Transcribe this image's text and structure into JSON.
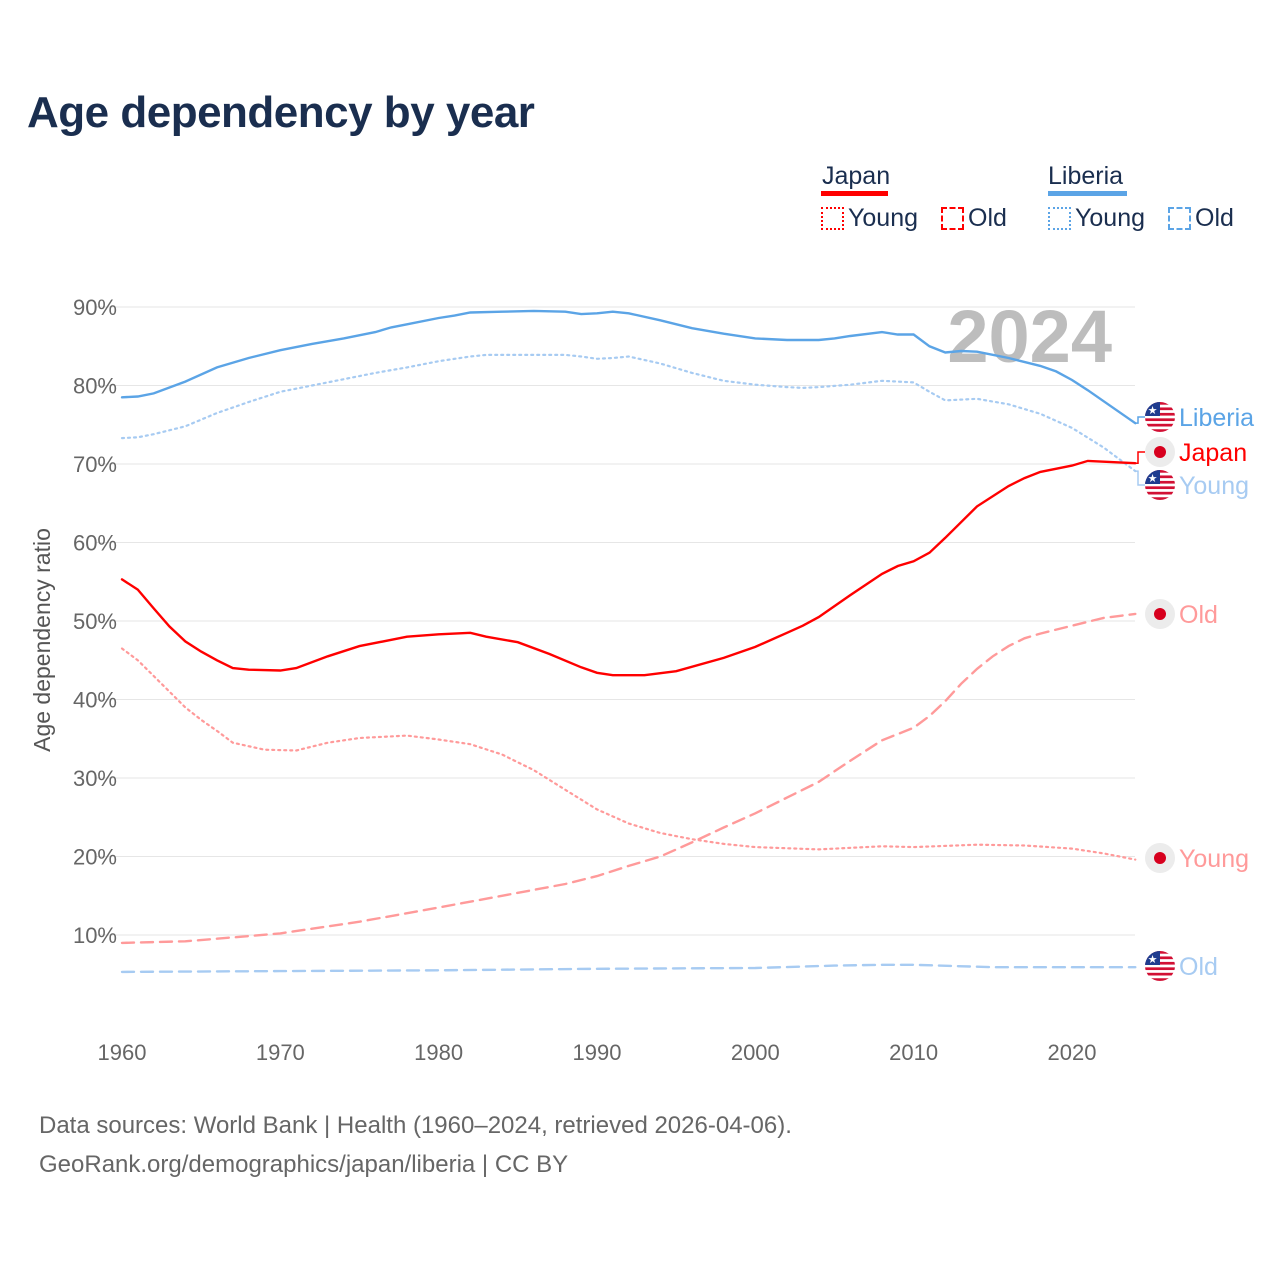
{
  "title": "Age dependency by year",
  "legend": {
    "groups": [
      {
        "country": "Japan",
        "color": "#ff0000",
        "items": [
          {
            "label": "Young",
            "style": "dotted"
          },
          {
            "label": "Old",
            "style": "dashed"
          }
        ]
      },
      {
        "country": "Liberia",
        "color": "#5ba4e6",
        "items": [
          {
            "label": "Young",
            "style": "dotted"
          },
          {
            "label": "Old",
            "style": "dashed"
          }
        ]
      }
    ]
  },
  "year_watermark": "2024",
  "source": {
    "line1": "Data sources: World Bank | Health (1960–2024, retrieved 2026-04-06).",
    "line2": "GeoRank.org/demographics/japan/liberia | CC BY"
  },
  "chart_data": {
    "type": "line",
    "title": "Age dependency by year",
    "xlabel": "",
    "ylabel": "Age dependency ratio",
    "xlim": [
      1960,
      2024
    ],
    "ylim": [
      0,
      90
    ],
    "x_ticks": [
      "1960",
      "1970",
      "1980",
      "1990",
      "2000",
      "2010",
      "2020"
    ],
    "y_ticks": [
      "10%",
      "20%",
      "30%",
      "40%",
      "50%",
      "60%",
      "70%",
      "80%",
      "90%"
    ],
    "grid": true,
    "series": [
      {
        "name": "Liberia",
        "country": "Liberia",
        "kind": "total",
        "end_label": "Liberia",
        "color": "#5ba4e6",
        "dash": "solid",
        "flag": "liberia",
        "x": [
          1960,
          1961,
          1962,
          1964,
          1966,
          1968,
          1970,
          1972,
          1974,
          1976,
          1977,
          1978,
          1980,
          1981,
          1982,
          1984,
          1986,
          1988,
          1989,
          1990,
          1991,
          1992,
          1994,
          1996,
          1998,
          2000,
          2002,
          2004,
          2005,
          2006,
          2008,
          2009,
          2010,
          2011,
          2012,
          2013,
          2014,
          2016,
          2018,
          2019,
          2020,
          2021,
          2022,
          2024
        ],
        "y": [
          78.5,
          78.6,
          79,
          80.5,
          82.3,
          83.5,
          84.5,
          85.3,
          86,
          86.8,
          87.4,
          87.8,
          88.6,
          88.9,
          89.3,
          89.4,
          89.5,
          89.4,
          89.1,
          89.2,
          89.4,
          89.2,
          88.3,
          87.3,
          86.6,
          86,
          85.8,
          85.8,
          86,
          86.3,
          86.8,
          86.5,
          86.5,
          85,
          84.2,
          84.4,
          84.3,
          83.5,
          82.5,
          81.8,
          80.7,
          79.4,
          78,
          75.2
        ]
      },
      {
        "name": "Liberia Young",
        "country": "Liberia",
        "kind": "young",
        "end_label": "Young",
        "color": "#a7cbf2",
        "dash": "dotted",
        "flag": "liberia",
        "x": [
          1960,
          1961,
          1962,
          1964,
          1966,
          1968,
          1970,
          1972,
          1974,
          1976,
          1978,
          1980,
          1982,
          1983,
          1984,
          1986,
          1988,
          1989,
          1990,
          1991,
          1992,
          1994,
          1996,
          1998,
          2000,
          2002,
          2003,
          2004,
          2006,
          2008,
          2010,
          2011,
          2012,
          2014,
          2016,
          2018,
          2020,
          2022,
          2024
        ],
        "y": [
          73.3,
          73.4,
          73.8,
          74.8,
          76.5,
          77.9,
          79.2,
          80,
          80.8,
          81.6,
          82.3,
          83.1,
          83.7,
          83.9,
          83.9,
          83.9,
          83.9,
          83.7,
          83.4,
          83.5,
          83.7,
          82.8,
          81.6,
          80.6,
          80.1,
          79.8,
          79.7,
          79.8,
          80.1,
          80.6,
          80.4,
          79.2,
          78.1,
          78.3,
          77.6,
          76.4,
          74.6,
          72.1,
          69.1
        ]
      },
      {
        "name": "Liberia Old",
        "country": "Liberia",
        "kind": "old",
        "end_label": "Old",
        "color": "#a7cbf2",
        "dash": "dashed",
        "flag": "liberia",
        "x": [
          1960,
          1970,
          1980,
          1990,
          2000,
          2005,
          2008,
          2010,
          2015,
          2020,
          2024
        ],
        "y": [
          5.3,
          5.4,
          5.5,
          5.7,
          5.8,
          6.1,
          6.2,
          6.2,
          5.9,
          5.9,
          5.9
        ]
      },
      {
        "name": "Japan",
        "country": "Japan",
        "kind": "total",
        "end_label": "Japan",
        "color": "#ff0000",
        "dash": "solid",
        "flag": "japan",
        "x": [
          1960,
          1961,
          1962,
          1963,
          1964,
          1965,
          1966,
          1967,
          1968,
          1970,
          1971,
          1973,
          1975,
          1978,
          1980,
          1982,
          1983,
          1985,
          1987,
          1989,
          1990,
          1991,
          1993,
          1995,
          1998,
          2000,
          2002,
          2003,
          2004,
          2006,
          2008,
          2009,
          2010,
          2011,
          2012,
          2014,
          2016,
          2017,
          2018,
          2020,
          2021,
          2024
        ],
        "y": [
          55.3,
          54,
          51.6,
          49.3,
          47.4,
          46.1,
          45,
          44,
          43.8,
          43.7,
          44,
          45.5,
          46.8,
          48,
          48.3,
          48.5,
          48,
          47.3,
          45.8,
          44.1,
          43.4,
          43.1,
          43.1,
          43.6,
          45.3,
          46.7,
          48.5,
          49.4,
          50.5,
          53.3,
          56,
          57,
          57.6,
          58.7,
          60.6,
          64.6,
          67.2,
          68.2,
          69,
          69.8,
          70.4,
          70.1
        ]
      },
      {
        "name": "Japan Young",
        "country": "Japan",
        "kind": "young",
        "end_label": "Young",
        "color": "#ff9a9a",
        "dash": "dotted",
        "flag": "japan",
        "x": [
          1960,
          1961,
          1962,
          1963,
          1964,
          1965,
          1966,
          1967,
          1969,
          1971,
          1973,
          1975,
          1978,
          1980,
          1982,
          1984,
          1986,
          1988,
          1990,
          1992,
          1994,
          1996,
          1998,
          2000,
          2004,
          2008,
          2010,
          2014,
          2017,
          2020,
          2022,
          2024
        ],
        "y": [
          46.5,
          45,
          43,
          41,
          39,
          37.4,
          36,
          34.5,
          33.6,
          33.5,
          34.5,
          35.1,
          35.4,
          34.9,
          34.3,
          33,
          31,
          28.5,
          26,
          24.2,
          23,
          22.2,
          21.6,
          21.2,
          20.9,
          21.3,
          21.2,
          21.5,
          21.4,
          21,
          20.4,
          19.6
        ]
      },
      {
        "name": "Japan Old",
        "country": "Japan",
        "kind": "old",
        "end_label": "Old",
        "color": "#ff9a9a",
        "dash": "dashed",
        "flag": "japan",
        "x": [
          1960,
          1964,
          1967,
          1970,
          1975,
          1980,
          1984,
          1988,
          1990,
          1992,
          1994,
          1996,
          1998,
          2000,
          2002,
          2004,
          2006,
          2008,
          2010,
          2011,
          2012,
          2013,
          2014,
          2015,
          2016,
          2017,
          2018,
          2020,
          2022,
          2024
        ],
        "y": [
          9,
          9.2,
          9.7,
          10.2,
          11.7,
          13.5,
          15,
          16.5,
          17.5,
          18.8,
          20,
          21.8,
          23.7,
          25.5,
          27.5,
          29.5,
          32.2,
          34.8,
          36.4,
          37.9,
          39.8,
          42,
          43.9,
          45.5,
          46.8,
          47.8,
          48.4,
          49.4,
          50.4,
          50.9
        ]
      }
    ]
  }
}
